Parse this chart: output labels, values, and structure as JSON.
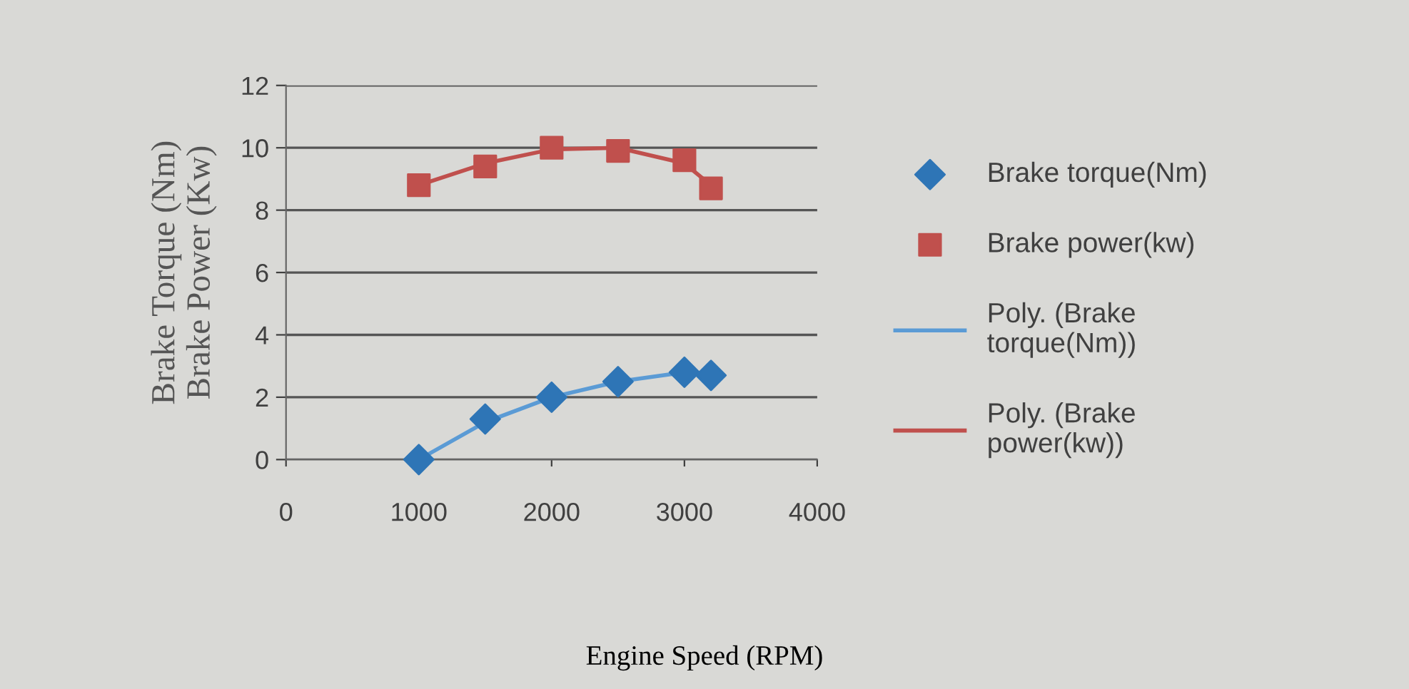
{
  "chart_data": {
    "type": "scatter",
    "xlabel": "Engine Speed (RPM)",
    "ylabel": "Brake Torque (Nm)\nBrake Power (Kw)",
    "xlim": [
      0,
      4000
    ],
    "xticks": [
      0,
      1000,
      2000,
      3000,
      4000
    ],
    "ylim": [
      0,
      12
    ],
    "yticks": [
      0,
      2,
      4,
      6,
      8,
      10,
      12
    ],
    "grid": "y",
    "legend": "right",
    "series": [
      {
        "name": "Brake torque(Nm)",
        "marker": "diamond",
        "color": "#2e75b6",
        "x": [
          1000,
          1500,
          2000,
          2500,
          3000,
          3200
        ],
        "values": [
          0,
          1.3,
          2.0,
          2.5,
          2.8,
          2.7
        ]
      },
      {
        "name": "Brake power(kw)",
        "marker": "square",
        "color": "#c0504d",
        "x": [
          1000,
          1500,
          2000,
          2500,
          3000,
          3200
        ],
        "values": [
          8.8,
          9.4,
          10.0,
          9.9,
          9.6,
          8.7
        ]
      },
      {
        "name": "Poly. (Brake torque(Nm))",
        "type": "line",
        "marker": "none",
        "color": "#5b9bd5",
        "x": [
          1000,
          1500,
          2000,
          2500,
          3000,
          3200
        ],
        "values": [
          0,
          1.2,
          2.0,
          2.5,
          2.8,
          2.75
        ]
      },
      {
        "name": "Poly. (Brake power(kw))",
        "type": "line",
        "marker": "none",
        "color": "#c0504d",
        "x": [
          1000,
          1500,
          2000,
          2500,
          3000,
          3200
        ],
        "values": [
          8.8,
          9.5,
          9.95,
          10.0,
          9.5,
          8.8
        ]
      }
    ]
  }
}
